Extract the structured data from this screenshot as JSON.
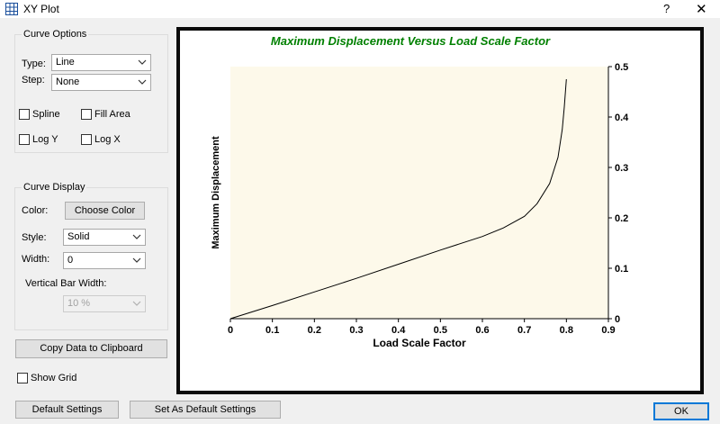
{
  "window": {
    "title": "XY Plot",
    "help_label": "?",
    "close_label": "✕"
  },
  "curve_options": {
    "group_title": "Curve Options",
    "type_label": "Type:",
    "type_value": "Line",
    "step_label": "Step:",
    "step_value": "None",
    "spline_label": "Spline",
    "spline_checked": false,
    "fill_area_label": "Fill Area",
    "fill_area_checked": false,
    "log_y_label": "Log Y",
    "log_y_checked": false,
    "log_x_label": "Log X",
    "log_x_checked": false
  },
  "curve_display": {
    "group_title": "Curve Display",
    "color_label": "Color:",
    "choose_color_label": "Choose Color",
    "style_label": "Style:",
    "style_value": "Solid",
    "width_label": "Width:",
    "width_value": "0",
    "vbar_width_label": "Vertical Bar Width:",
    "vbar_width_value": "10 %"
  },
  "copy_button_label": "Copy Data to Clipboard",
  "show_grid_label": "Show Grid",
  "show_grid_checked": false,
  "footer": {
    "default_settings_label": "Default Settings",
    "set_default_label": "Set As Default Settings",
    "ok_label": "OK"
  },
  "colors": {
    "title_green": "#008000",
    "plot_area_bg": "#fdf9ea",
    "frame": "#0a0a0a"
  },
  "chart_data": {
    "type": "line",
    "title": "Maximum Displacement Versus Load Scale Factor",
    "xlabel": "Load Scale Factor",
    "ylabel": "Maximum Displacement",
    "xlim": [
      0,
      0.9
    ],
    "ylim": [
      0,
      0.5
    ],
    "x_ticks": [
      "0",
      "0.1",
      "0.2",
      "0.3",
      "0.4",
      "0.5",
      "0.6",
      "0.7",
      "0.8",
      "0.9"
    ],
    "y_ticks": [
      "0",
      "0.1",
      "0.2",
      "0.3",
      "0.4",
      "0.5"
    ],
    "y_axis_side": "right",
    "grid": false,
    "series": [
      {
        "x": [
          0,
          0.1,
          0.2,
          0.3,
          0.4,
          0.5,
          0.6,
          0.65,
          0.7,
          0.73,
          0.76,
          0.78,
          0.79,
          0.795,
          0.8
        ],
        "y": [
          0,
          0.026,
          0.053,
          0.08,
          0.108,
          0.136,
          0.163,
          0.18,
          0.203,
          0.228,
          0.268,
          0.32,
          0.375,
          0.42,
          0.475
        ]
      }
    ]
  }
}
